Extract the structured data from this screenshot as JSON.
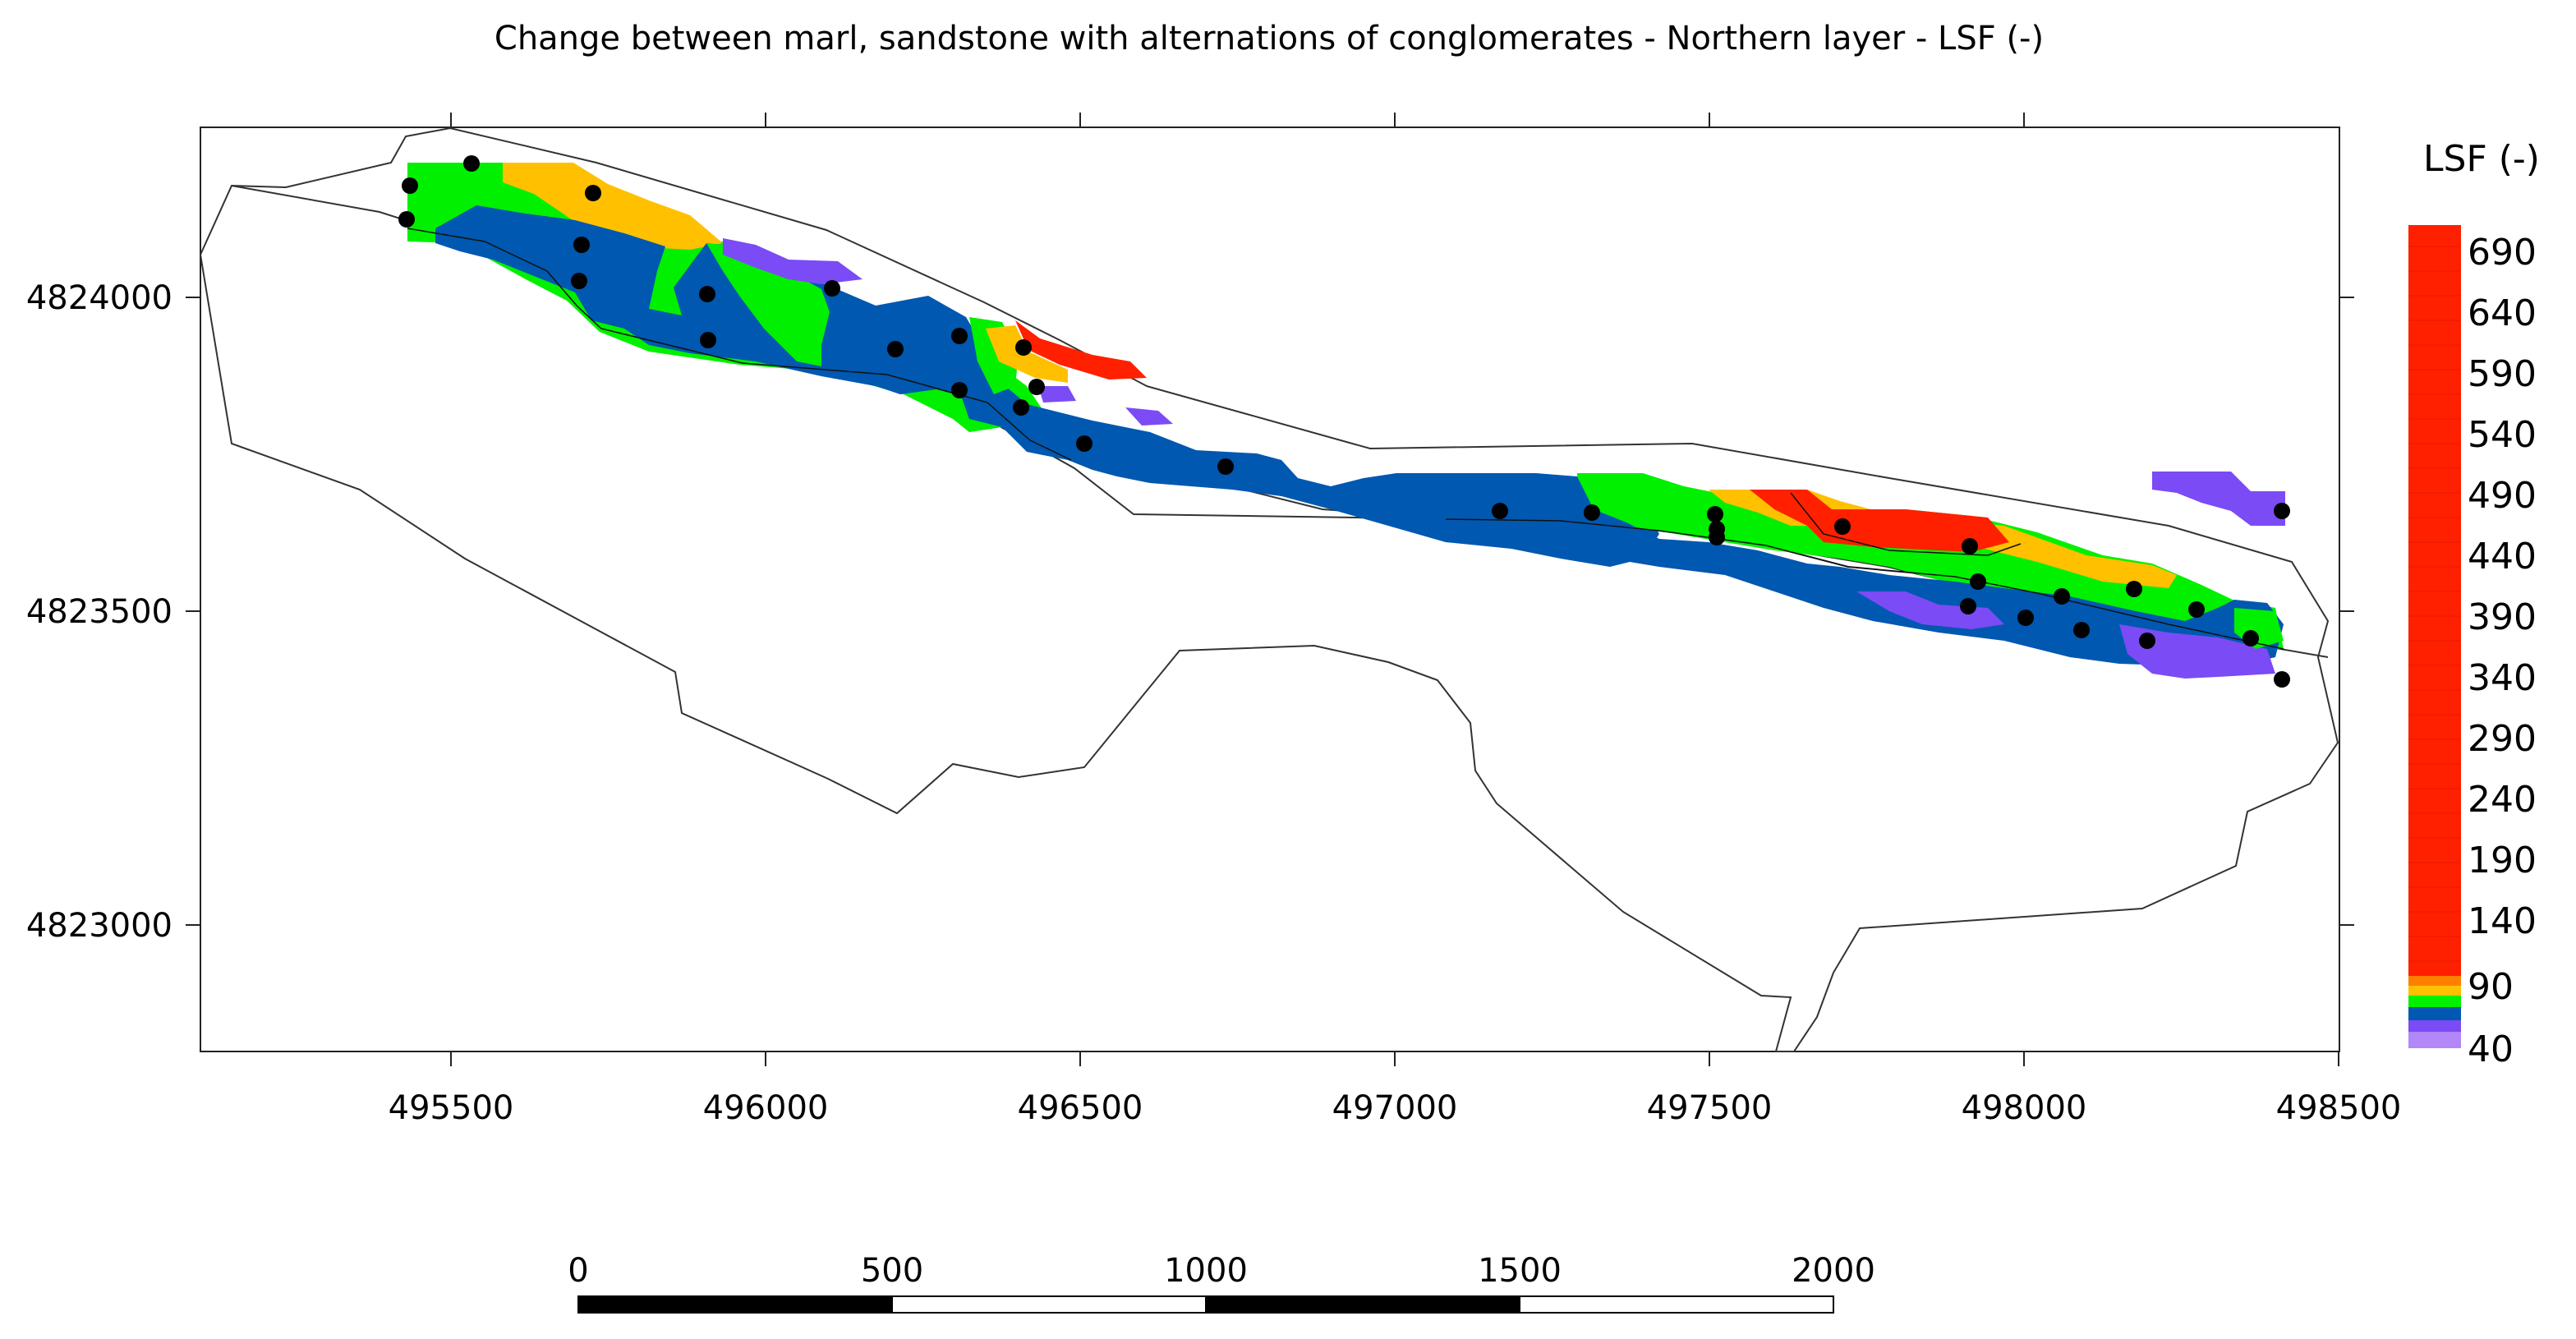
{
  "title": "Change between marl, sandstone with alternations of conglomerates - Northern layer - LSF (-)",
  "x_ticks": [
    "495500",
    "496000",
    "496500",
    "497000",
    "497500",
    "498000",
    "498500"
  ],
  "y_ticks": [
    "4824000",
    "4823500",
    "4823000"
  ],
  "legend": {
    "title": "LSF (-)",
    "labels": [
      "690",
      "640",
      "590",
      "540",
      "490",
      "440",
      "390",
      "340",
      "290",
      "240",
      "190",
      "140",
      "90",
      "40"
    ],
    "colors": {
      "violet": "#7B4BF5",
      "blue": "#0058B0",
      "green": "#00F000",
      "yellow": "#FFC000",
      "orange": "#FF7F00",
      "red": "#FF2000"
    }
  },
  "scale_bar": {
    "labels": [
      "0",
      "500",
      "1000",
      "1500",
      "2000"
    ]
  }
}
